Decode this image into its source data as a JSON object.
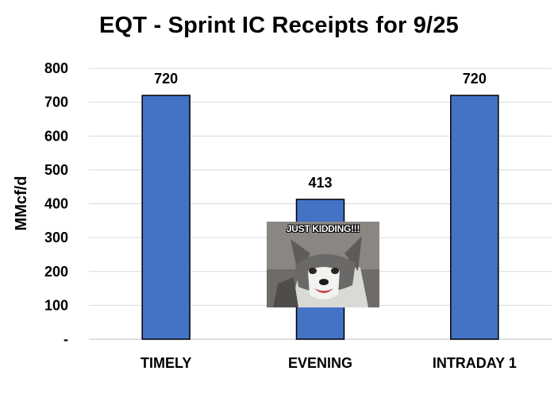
{
  "chart_data": {
    "type": "bar",
    "title": "EQT - Sprint IC Receipts for 9/25",
    "categories": [
      "TIMELY",
      "EVENING",
      "INTRADAY 1"
    ],
    "values": [
      720,
      413,
      720
    ],
    "data_labels": [
      "720",
      "413",
      "720"
    ],
    "ylabel": "MMcf/d",
    "xlabel": "",
    "ylim": [
      0,
      800
    ],
    "yticks": [
      0,
      100,
      200,
      300,
      400,
      500,
      600,
      700,
      800
    ],
    "ytick_labels": [
      "-",
      "100",
      "200",
      "300",
      "400",
      "500",
      "600",
      "700",
      "800"
    ],
    "grid": true,
    "legend": "none",
    "bar_color": "#4472C4",
    "bar_edge_color": "#000000"
  },
  "overlay_image": {
    "caption": "JUST KIDDING!!!"
  }
}
